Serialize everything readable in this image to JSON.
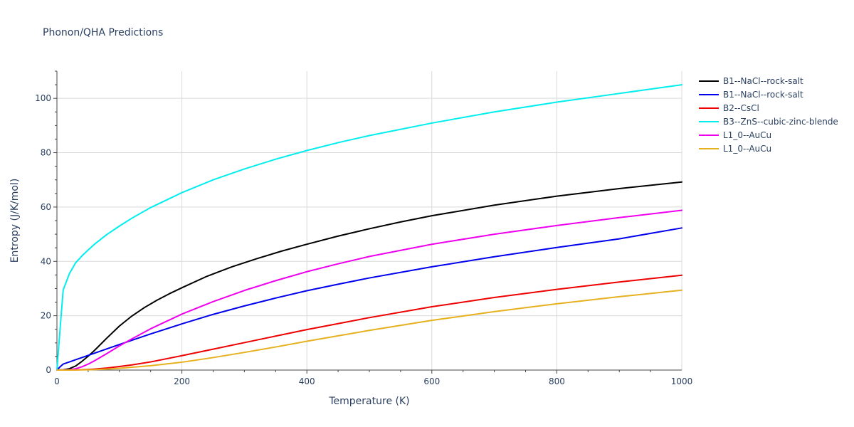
{
  "chart_data": {
    "type": "line",
    "title": "Phonon/QHA Predictions",
    "xlabel": "Temperature (K)",
    "ylabel": "Entropy (J/K/mol)",
    "xlim": [
      0,
      1000
    ],
    "ylim": [
      0,
      110
    ],
    "xticks": [
      0,
      200,
      400,
      600,
      800,
      1000
    ],
    "yticks": [
      0,
      20,
      40,
      60,
      80,
      100
    ],
    "grid": true,
    "legend_position": "top-right",
    "series": [
      {
        "name": "B1--NaCl--rock-salt",
        "color": "#000000",
        "x": [
          0,
          10,
          20,
          30,
          40,
          50,
          60,
          80,
          100,
          120,
          140,
          160,
          180,
          200,
          240,
          280,
          320,
          360,
          400,
          450,
          500,
          550,
          600,
          700,
          800,
          900,
          1000
        ],
        "y": [
          0,
          0.1,
          0.5,
          1.5,
          3.2,
          5.1,
          7.2,
          11.8,
          16.2,
          19.9,
          23.0,
          25.7,
          28.1,
          30.3,
          34.5,
          38.0,
          41.0,
          43.8,
          46.3,
          49.3,
          52.0,
          54.5,
          56.8,
          60.7,
          64.0,
          66.8,
          69.2
        ]
      },
      {
        "name": "B1--NaCl--rock-salt",
        "color": "#0000ee",
        "x": [
          0,
          5,
          10,
          20,
          30,
          40,
          60,
          80,
          100,
          150,
          200,
          250,
          300,
          350,
          400,
          450,
          500,
          600,
          700,
          800,
          900,
          1000
        ],
        "y": [
          0,
          1.2,
          2.2,
          3.0,
          3.8,
          4.6,
          6.2,
          7.8,
          9.4,
          13.3,
          17.0,
          20.5,
          23.6,
          26.5,
          29.2,
          31.6,
          33.9,
          38.0,
          41.7,
          45.1,
          48.3,
          52.3
        ]
      },
      {
        "name": "B2--CsCl",
        "color": "#ee0000",
        "x": [
          0,
          20,
          40,
          60,
          80,
          100,
          120,
          150,
          200,
          250,
          300,
          350,
          400,
          450,
          500,
          600,
          700,
          800,
          900,
          1000
        ],
        "y": [
          0,
          0.02,
          0.12,
          0.35,
          0.75,
          1.3,
          1.9,
          3.0,
          5.3,
          7.7,
          10.1,
          12.5,
          14.9,
          17.1,
          19.3,
          23.3,
          26.7,
          29.7,
          32.4,
          34.9
        ]
      },
      {
        "name": "B3--ZnS--cubic-zinc-blende",
        "color": "#00eeee",
        "x": [
          0,
          5,
          10,
          15,
          20,
          30,
          40,
          50,
          60,
          80,
          100,
          120,
          150,
          200,
          250,
          300,
          350,
          400,
          450,
          500,
          600,
          700,
          800,
          900,
          1000
        ],
        "y": [
          0,
          15,
          29.5,
          32.5,
          35.5,
          39.5,
          42.0,
          44.2,
          46.3,
          49.9,
          53.0,
          55.9,
          59.8,
          65.3,
          70.0,
          74.0,
          77.6,
          80.8,
          83.7,
          86.3,
          90.9,
          95.0,
          98.6,
          101.8,
          105.0
        ]
      },
      {
        "name": "L1_0--AuCu",
        "color": "#ee00ee",
        "x": [
          0,
          20,
          30,
          40,
          50,
          60,
          80,
          100,
          120,
          150,
          200,
          250,
          300,
          350,
          400,
          450,
          500,
          600,
          700,
          800,
          900,
          1000
        ],
        "y": [
          0,
          0.1,
          0.5,
          1.2,
          2.2,
          3.4,
          6.1,
          8.9,
          11.5,
          15.2,
          20.6,
          25.2,
          29.3,
          32.9,
          36.2,
          39.1,
          41.8,
          46.3,
          50.0,
          53.2,
          56.1,
          58.8
        ]
      },
      {
        "name": "L1_0--AuCu",
        "color": "#e6b01f",
        "x": [
          0,
          20,
          40,
          60,
          80,
          100,
          150,
          200,
          250,
          300,
          350,
          400,
          450,
          500,
          600,
          700,
          800,
          900,
          1000
        ],
        "y": [
          0,
          0.01,
          0.05,
          0.15,
          0.35,
          0.65,
          1.6,
          2.9,
          4.6,
          6.5,
          8.5,
          10.6,
          12.6,
          14.6,
          18.3,
          21.5,
          24.4,
          27.0,
          29.4
        ]
      }
    ]
  }
}
